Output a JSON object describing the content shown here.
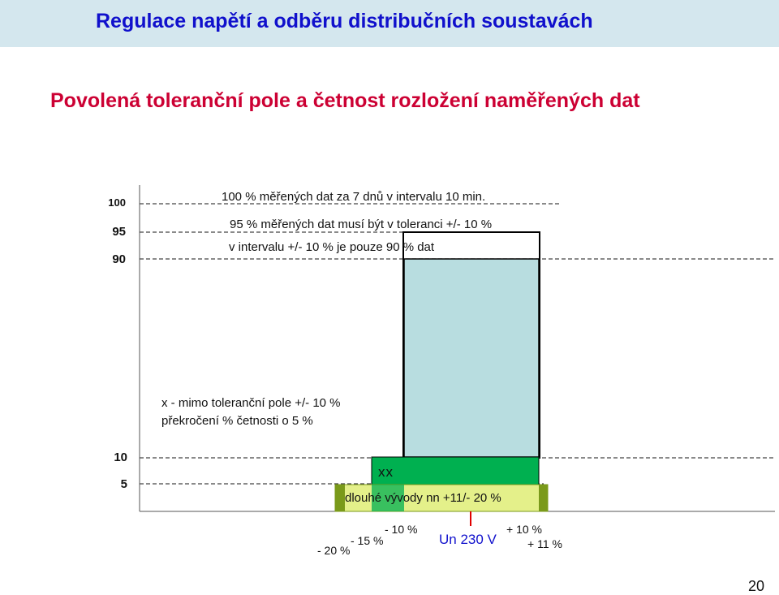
{
  "header": {
    "title": "Regulace napětí a odběru distribučních soustavách",
    "subtitle": "Povolená toleranční pole a četnost rozložení naměřených dat"
  },
  "y_axis": {
    "upper_ticks": [
      "100",
      "95",
      "90"
    ],
    "lower_ticks": [
      "10",
      "5"
    ]
  },
  "annotations": {
    "line_100": "100 % měřených dat za 7 dnů v intervalu 10 min.",
    "line_95": "95 % měřených dat musí být v toleranci +/- 10 %",
    "line_90": "v intervalu +/- 10 % je pouze 90 % dat",
    "legend_line1": "x - mimo toleranční pole +/- 10 %",
    "legend_line2": "překročení % četnosti o 5 %",
    "xx_mark": "xx",
    "long_term": "dlouhé vývody nn +11/- 20 %"
  },
  "x_labels": {
    "minus20": "- 20 %",
    "minus15": "- 15 %",
    "minus10": "- 10 %",
    "un": "Un 230 V",
    "plus10": "+ 10 %",
    "plus11": "+ 11 %"
  },
  "colors": {
    "title": "#1010cc",
    "subtitle": "#cc0033",
    "title_bar": "#d4e7ee",
    "tolerance_box": "#b8dde0",
    "green_band": "#00b050",
    "lime_band": "#e4f08a",
    "olive": "#7a9a1a",
    "un_marker": "#e00000"
  },
  "page_number": "20"
}
